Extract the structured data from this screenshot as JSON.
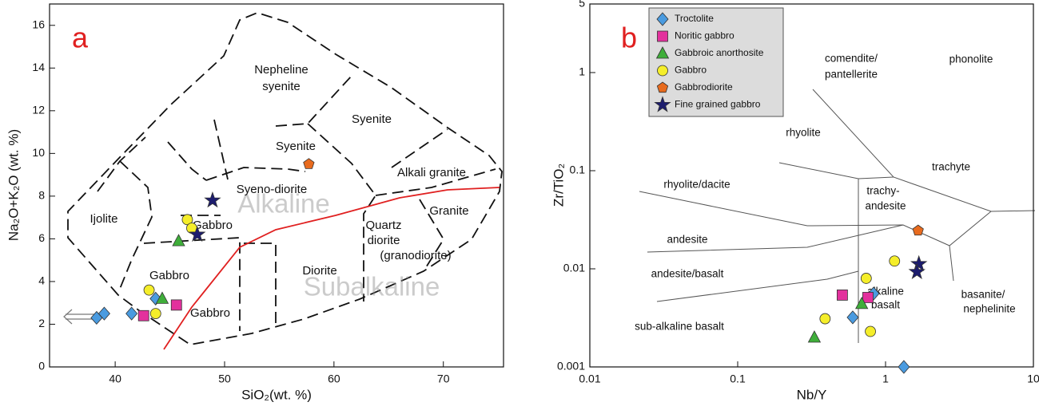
{
  "chart_data": [
    {
      "type": "scatter",
      "panel_label": "a",
      "xlabel": "SiO₂(wt. %)",
      "ylabel": "Na₂O+K₂O (wt. %)",
      "xlim": [
        34,
        75.5
      ],
      "ylim": [
        0,
        17
      ],
      "xticks": [
        40,
        50,
        60,
        70
      ],
      "yticks": [
        0,
        2,
        4,
        6,
        8,
        10,
        12,
        14,
        16
      ],
      "field_labels": [
        "Ijolite",
        "Nepheline",
        "syenite",
        "Syenite",
        "Syenite",
        "Syeno-diorite",
        "Alkali granite",
        "Gabbro",
        "Granite",
        "Quartz",
        "diorite",
        "(granodiorite)",
        "Gabbro",
        "Diorite",
        "Gabbro"
      ],
      "watermarks": [
        "Alkaline",
        "Subalkaline"
      ],
      "series": [
        {
          "color": "#4a9be0",
          "marker": "diamond",
          "x": [
            38.3,
            39.0,
            41.5,
            43.7
          ],
          "values": [
            2.3,
            2.5,
            2.5,
            3.2
          ]
        },
        {
          "color": "#e3319d",
          "marker": "square",
          "x": [
            42.6,
            45.6
          ],
          "values": [
            2.4,
            2.9
          ]
        },
        {
          "color": "#3fae3a",
          "marker": "triangle",
          "x": [
            45.8,
            44.3
          ],
          "values": [
            5.9,
            3.2
          ]
        },
        {
          "color": "#f5ee2a",
          "marker": "circle",
          "x": [
            43.1,
            46.6,
            47.0,
            43.7
          ],
          "values": [
            3.6,
            6.9,
            6.5,
            2.5
          ]
        },
        {
          "color": "#e86b1e",
          "marker": "pentagon",
          "x": [
            57.7
          ],
          "values": [
            9.5
          ]
        },
        {
          "color": "#1c1c6e",
          "marker": "star",
          "x": [
            48.9,
            47.5
          ],
          "values": [
            7.8,
            6.2
          ]
        }
      ]
    },
    {
      "type": "scatter",
      "panel_label": "b",
      "xlabel": "Nb/Y",
      "ylabel": "Zr/TiO₂",
      "log_x": true,
      "log_y": true,
      "legend": "upper left",
      "xlim": [
        0.01,
        10
      ],
      "ylim": [
        0.001,
        5
      ],
      "xticks": [
        0.01,
        0.1,
        1,
        10
      ],
      "yticks": [
        0.001,
        0.01,
        0.1,
        1,
        5
      ],
      "field_labels": [
        "comendite/",
        "pantellerite",
        "phonolite",
        "rhyolite",
        "trachyte",
        "rhyolite/dacite",
        "trachy-",
        "andesite",
        "andesite",
        "andesite/basalt",
        "alkaline",
        "basalt",
        "basanite/",
        "nephelinite",
        "sub-alkaline basalt"
      ],
      "series": [
        {
          "name": "Troctolite",
          "color": "#4a9be0",
          "marker": "diamond",
          "x": [
            1.33,
            0.6,
            0.83
          ],
          "values": [
            0.001,
            0.0032,
            0.0056
          ]
        },
        {
          "name": "Noritic gabbro",
          "color": "#e3319d",
          "marker": "square",
          "x": [
            0.51,
            0.76
          ],
          "values": [
            0.0054,
            0.0051
          ]
        },
        {
          "name": "Gabbroic anorthosite",
          "color": "#3fae3a",
          "marker": "triangle",
          "x": [
            0.33,
            0.69
          ],
          "values": [
            0.002,
            0.0044
          ]
        },
        {
          "name": "Gabbro",
          "color": "#f5ee2a",
          "marker": "circle",
          "x": [
            0.39,
            0.74,
            0.79,
            1.15
          ],
          "values": [
            0.0031,
            0.008,
            0.0023,
            0.012
          ]
        },
        {
          "name": "Gabbrodiorite",
          "color": "#e86b1e",
          "marker": "pentagon",
          "x": [
            1.66
          ],
          "values": [
            0.0245
          ]
        },
        {
          "name": "Fine grained gabbro",
          "color": "#1c1c6e",
          "marker": "star",
          "x": [
            1.68,
            1.63
          ],
          "values": [
            0.0112,
            0.0093
          ]
        }
      ]
    }
  ]
}
